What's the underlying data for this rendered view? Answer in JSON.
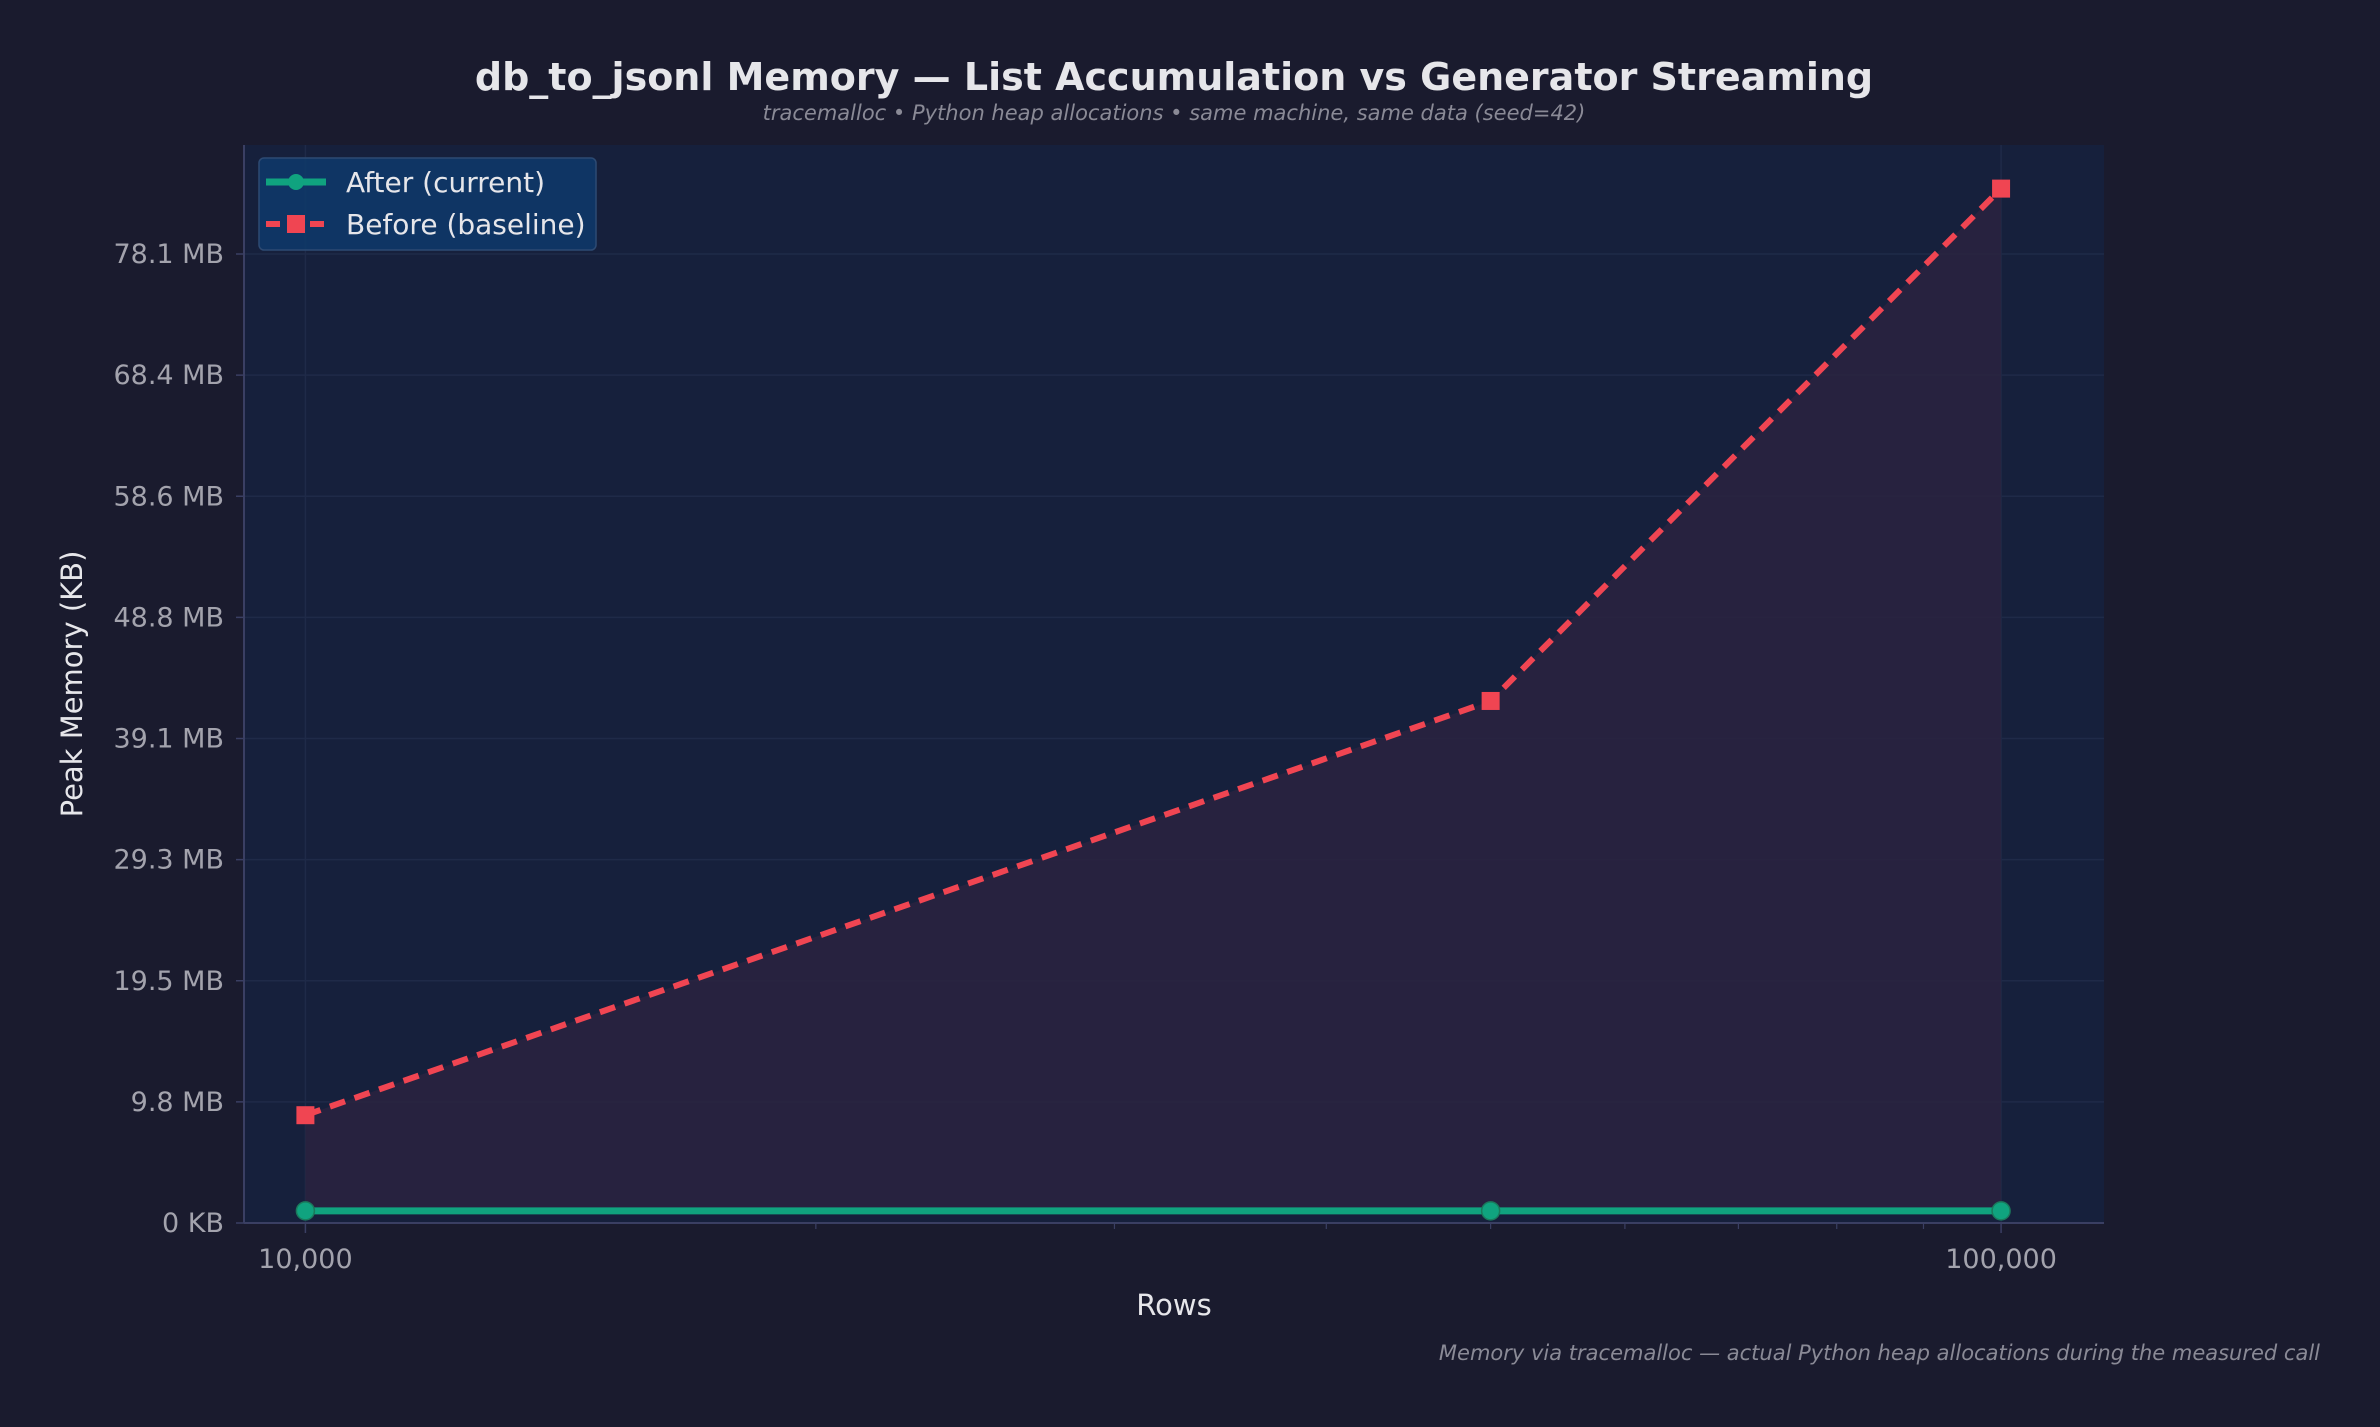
{
  "chart_data": {
    "type": "line",
    "title": "db_to_jsonl Memory — List Accumulation vs Generator Streaming",
    "subtitle": "tracemalloc • Python heap allocations • same machine, same data (seed=42)",
    "footnote": "Memory via tracemalloc — actual Python heap allocations during the measured call",
    "xlabel": "Rows",
    "ylabel": "Peak Memory (KB)",
    "x_scale": "log",
    "x": [
      10000,
      50000,
      100000
    ],
    "xlim": [
      9200,
      115000
    ],
    "xticks": [
      {
        "value": 10000,
        "label": "10,000"
      },
      {
        "value": 100000,
        "label": "100,000"
      }
    ],
    "x_minor_ticks": [
      20000,
      30000,
      40000,
      50000,
      60000,
      70000,
      80000,
      90000
    ],
    "ylim": [
      0,
      89000
    ],
    "yticks": [
      {
        "value": 0,
        "label": "0 KB"
      },
      {
        "value": 10000,
        "label": "9.8 MB"
      },
      {
        "value": 20000,
        "label": "19.5 MB"
      },
      {
        "value": 30000,
        "label": "29.3 MB"
      },
      {
        "value": 40000,
        "label": "39.1 MB"
      },
      {
        "value": 50000,
        "label": "48.8 MB"
      },
      {
        "value": 60000,
        "label": "58.6 MB"
      },
      {
        "value": 70000,
        "label": "68.4 MB"
      },
      {
        "value": 80000,
        "label": "78.1 MB"
      }
    ],
    "grid": true,
    "legend_position": "top-left",
    "series": [
      {
        "name": "After (current)",
        "key": "after",
        "values": [
          1000,
          1000,
          1000
        ],
        "color": "#10a37f",
        "style": "solid",
        "marker": "circle"
      },
      {
        "name": "Before (baseline)",
        "key": "before",
        "values": [
          8900,
          43100,
          85400
        ],
        "color": "#f04552",
        "style": "dashed",
        "marker": "square"
      }
    ],
    "colors": {
      "background": "#1a1b2e",
      "plot_background": "#16203c",
      "fill_between": "#2a2340",
      "axis": "#3a3f63",
      "grid": "#1f2a48",
      "tick_label": "#a3a3ad",
      "title": "#e6e6ea",
      "subtitle": "#8a8a96",
      "legend_bg": "#0e3a6b"
    }
  }
}
